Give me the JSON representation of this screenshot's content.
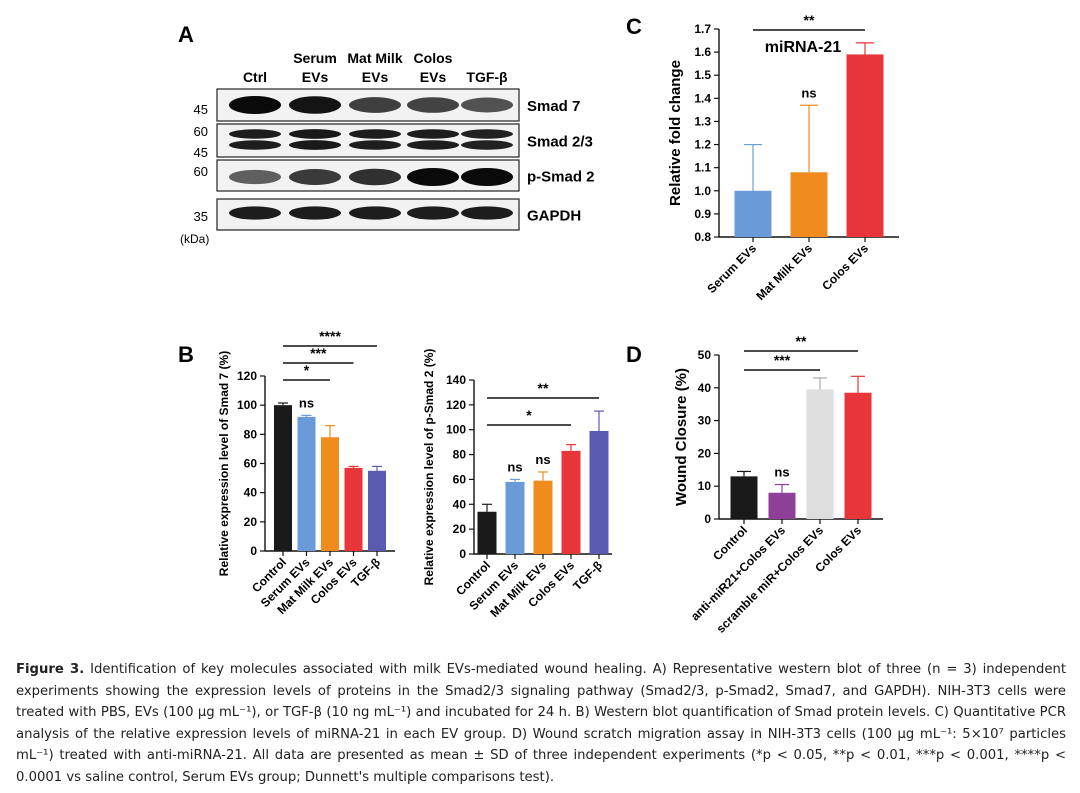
{
  "panels": {
    "A": {
      "label": "A",
      "lanes": [
        "Ctrl",
        "Serum\nEVs",
        "Mat Milk\nEVs",
        "Colos\nEVs",
        "TGF-β"
      ],
      "blots": [
        {
          "name": "Smad 7",
          "markers": [
            "45"
          ],
          "intensity": [
            1.0,
            0.95,
            0.72,
            0.7,
            0.62
          ]
        },
        {
          "name": "Smad 2/3",
          "markers": [
            "60",
            "45"
          ],
          "intensity": [
            0.9,
            0.92,
            0.9,
            0.9,
            0.88
          ]
        },
        {
          "name": "p-Smad 2",
          "markers": [
            "60"
          ],
          "intensity": [
            0.55,
            0.75,
            0.8,
            1.0,
            1.0
          ]
        },
        {
          "name": "GAPDH",
          "markers": [
            "35"
          ],
          "intensity": [
            0.9,
            0.9,
            0.9,
            0.9,
            0.9
          ]
        }
      ],
      "unit_label": "(kDa)"
    },
    "B": {
      "label": "B"
    },
    "C": {
      "label": "C"
    },
    "D": {
      "label": "D"
    }
  },
  "chart_data": [
    {
      "id": "B1",
      "type": "bar",
      "title": "",
      "ylabel": "Relative expression level of Smad 7 (%)",
      "xlabel": "",
      "categories": [
        "Control",
        "Serum EVs",
        "Mat Milk EVs",
        "Colos EVs",
        "TGF-β"
      ],
      "values": [
        100,
        92,
        78,
        57,
        55
      ],
      "errors": [
        1.5,
        1,
        8,
        1,
        3
      ],
      "colors": [
        "#1a1a1a",
        "#6a9bd8",
        "#f08c1e",
        "#e8353a",
        "#5a5ab0"
      ],
      "bar_annotations": [
        "",
        "ns",
        "",
        "",
        ""
      ],
      "ylim": [
        0,
        120
      ],
      "yticks": [
        0,
        20,
        40,
        60,
        80,
        100,
        120
      ],
      "brackets": [
        {
          "from": 0,
          "to": 2,
          "label": "*"
        },
        {
          "from": 0,
          "to": 3,
          "label": "***"
        },
        {
          "from": 0,
          "to": 4,
          "label": "****"
        }
      ]
    },
    {
      "id": "B2",
      "type": "bar",
      "title": "",
      "ylabel": "Relative expression level of p-Smad 2 (%)",
      "xlabel": "",
      "categories": [
        "Control",
        "Serum EVs",
        "Mat Milk EVs",
        "Colos EVs",
        "TGF-β"
      ],
      "values": [
        34,
        58,
        59,
        83,
        99
      ],
      "errors": [
        6,
        2,
        7,
        5,
        16
      ],
      "colors": [
        "#1a1a1a",
        "#6a9bd8",
        "#f08c1e",
        "#e8353a",
        "#5a5ab0"
      ],
      "bar_annotations": [
        "",
        "ns",
        "ns",
        "",
        ""
      ],
      "ylim": [
        0,
        140
      ],
      "yticks": [
        0,
        20,
        40,
        60,
        80,
        100,
        120,
        140
      ],
      "brackets": [
        {
          "from": 0,
          "to": 3,
          "label": "*"
        },
        {
          "from": 0,
          "to": 4,
          "label": "**"
        }
      ]
    },
    {
      "id": "C",
      "type": "bar",
      "title": "miRNA-21",
      "ylabel": "Relative fold change",
      "xlabel": "",
      "categories": [
        "Serum EVs",
        "Mat Milk EVs",
        "Colos EVs"
      ],
      "values": [
        1.0,
        1.08,
        1.59
      ],
      "errors": [
        0.2,
        0.29,
        0.05
      ],
      "colors": [
        "#6a9bd8",
        "#f08c1e",
        "#e8353a"
      ],
      "bar_annotations": [
        "",
        "ns",
        ""
      ],
      "ylim": [
        0.8,
        1.7
      ],
      "yticks": [
        0.8,
        0.9,
        1.0,
        1.1,
        1.2,
        1.3,
        1.4,
        1.5,
        1.6,
        1.7
      ],
      "brackets": [
        {
          "from": 0,
          "to": 2,
          "label": "**"
        }
      ]
    },
    {
      "id": "D",
      "type": "bar",
      "title": "",
      "ylabel": "Wound Closure  (%)",
      "xlabel": "",
      "categories": [
        "Control",
        "anti-miR21+Colos EVs",
        "scramble miR+Colos EVs",
        "Colos EVs"
      ],
      "values": [
        13,
        8,
        39.5,
        38.5
      ],
      "errors": [
        1.5,
        2.5,
        3.5,
        5
      ],
      "colors": [
        "#1a1a1a",
        "#8e3f97",
        "#dedede",
        "#e8353a"
      ],
      "bar_annotations": [
        "",
        "ns",
        "",
        ""
      ],
      "ylim": [
        0,
        50
      ],
      "yticks": [
        0,
        10,
        20,
        30,
        40,
        50
      ],
      "brackets": [
        {
          "from": 0,
          "to": 2,
          "label": "***"
        },
        {
          "from": 0,
          "to": 3,
          "label": "**"
        }
      ]
    }
  ],
  "caption": {
    "label": "Figure 3.",
    "text": "Identification of key molecules associated with milk EVs-mediated wound healing. A) Representative western blot of three (n = 3) independent experiments showing the expression levels of proteins in the Smad2/3 signaling pathway (Smad2/3, p-Smad2, Smad7, and GAPDH). NIH-3T3 cells were treated with PBS, EVs (100 μg mL⁻¹), or TGF-β (10 ng mL⁻¹) and incubated for 24 h. B) Western blot quantification of Smad protein levels. C) Quantitative PCR analysis of the relative expression levels of miRNA-21 in each EV group. D) Wound scratch migration assay in NIH-3T3 cells (100 μg mL⁻¹: 5×10⁷ particles mL⁻¹) treated with anti-miRNA-21. All data are presented as mean ± SD of three independent experiments (*p < 0.05, **p < 0.01, ***p < 0.001, ****p < 0.0001 vs saline control, Serum EVs group; Dunnett's multiple comparisons test)."
  }
}
